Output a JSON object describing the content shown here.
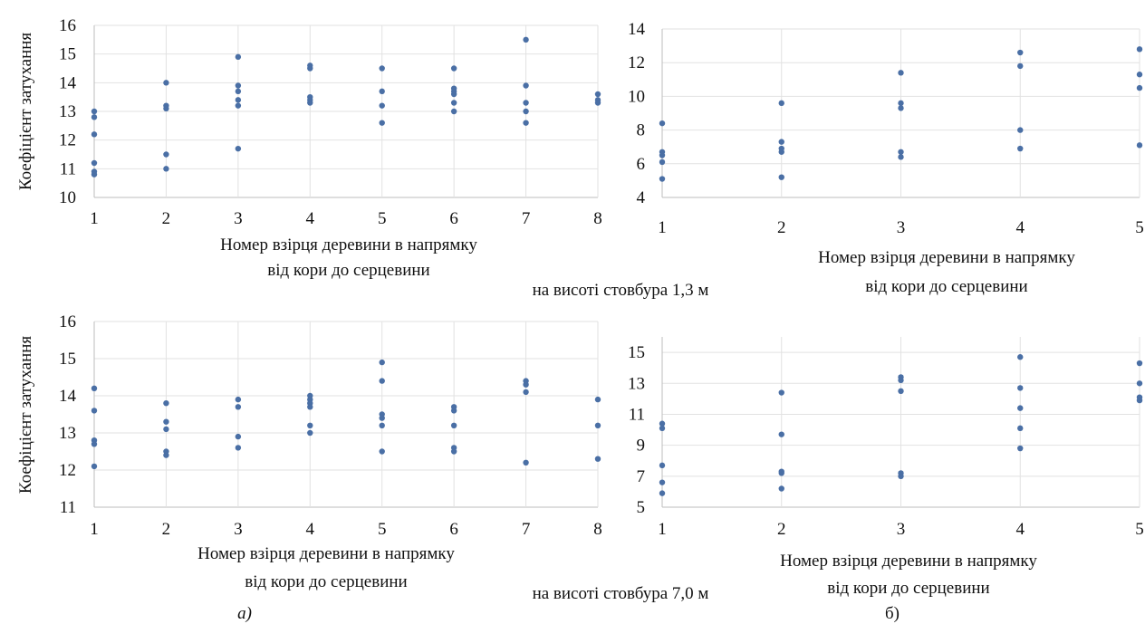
{
  "figure": {
    "caption_top": "на висоті стовбура 1,3 м",
    "caption_bottom": "на висоті стовбура 7,0 м",
    "label_a": "а)",
    "label_b": "б)",
    "accent_color": "#4a6fa5"
  },
  "chart_data": [
    {
      "id": "a-top",
      "type": "scatter",
      "ylabel": "Коефіцієнт затухання",
      "xlabel": [
        "Номер взірця деревини в напрямку",
        "від кори до серцевини"
      ],
      "xlim": [
        1,
        8
      ],
      "ylim": [
        10,
        16
      ],
      "xticks": [
        1,
        2,
        3,
        4,
        5,
        6,
        7,
        8
      ],
      "yticks": [
        10,
        11,
        12,
        13,
        14,
        15,
        16
      ],
      "grid": true,
      "points": [
        [
          1,
          13.0
        ],
        [
          1,
          12.8
        ],
        [
          1,
          12.2
        ],
        [
          1,
          11.2
        ],
        [
          1,
          10.9
        ],
        [
          1,
          10.8
        ],
        [
          2,
          14.0
        ],
        [
          2,
          13.2
        ],
        [
          2,
          13.1
        ],
        [
          2,
          11.5
        ],
        [
          2,
          11.0
        ],
        [
          3,
          14.9
        ],
        [
          3,
          13.9
        ],
        [
          3,
          13.7
        ],
        [
          3,
          13.4
        ],
        [
          3,
          13.2
        ],
        [
          3,
          11.7
        ],
        [
          4,
          14.6
        ],
        [
          4,
          14.5
        ],
        [
          4,
          13.5
        ],
        [
          4,
          13.4
        ],
        [
          4,
          13.3
        ],
        [
          5,
          14.5
        ],
        [
          5,
          13.7
        ],
        [
          5,
          13.2
        ],
        [
          5,
          12.6
        ],
        [
          6,
          14.5
        ],
        [
          6,
          13.8
        ],
        [
          6,
          13.7
        ],
        [
          6,
          13.6
        ],
        [
          6,
          13.3
        ],
        [
          6,
          13.0
        ],
        [
          7,
          15.5
        ],
        [
          7,
          13.9
        ],
        [
          7,
          13.3
        ],
        [
          7,
          13.0
        ],
        [
          7,
          12.6
        ],
        [
          8,
          13.6
        ],
        [
          8,
          13.4
        ],
        [
          8,
          13.3
        ]
      ]
    },
    {
      "id": "b-top",
      "type": "scatter",
      "ylabel": "",
      "xlabel": [
        "Номер взірця деревини в напрямку",
        "від кори до серцевини"
      ],
      "xlim": [
        1,
        5
      ],
      "ylim": [
        4,
        14
      ],
      "xticks": [
        1,
        2,
        3,
        4,
        5
      ],
      "yticks": [
        4,
        6,
        8,
        10,
        12,
        14
      ],
      "grid": true,
      "points": [
        [
          1,
          8.4
        ],
        [
          1,
          6.7
        ],
        [
          1,
          6.5
        ],
        [
          1,
          6.1
        ],
        [
          1,
          5.1
        ],
        [
          2,
          9.6
        ],
        [
          2,
          7.3
        ],
        [
          2,
          6.9
        ],
        [
          2,
          6.7
        ],
        [
          2,
          5.2
        ],
        [
          3,
          11.4
        ],
        [
          3,
          9.6
        ],
        [
          3,
          9.3
        ],
        [
          3,
          6.7
        ],
        [
          3,
          6.4
        ],
        [
          4,
          12.6
        ],
        [
          4,
          11.8
        ],
        [
          4,
          8.0
        ],
        [
          4,
          6.9
        ],
        [
          5,
          12.8
        ],
        [
          5,
          11.3
        ],
        [
          5,
          10.5
        ],
        [
          5,
          7.1
        ]
      ]
    },
    {
      "id": "a-bottom",
      "type": "scatter",
      "ylabel": "Коефіцієнт затухання",
      "xlabel": [
        "Номер взірця деревини в напрямку",
        "від кори до серцевини"
      ],
      "xlim": [
        1,
        8
      ],
      "ylim": [
        11,
        16
      ],
      "xticks": [
        1,
        2,
        3,
        4,
        5,
        6,
        7,
        8
      ],
      "yticks": [
        11,
        12,
        13,
        14,
        15,
        16
      ],
      "grid": true,
      "points": [
        [
          1,
          14.2
        ],
        [
          1,
          13.6
        ],
        [
          1,
          12.8
        ],
        [
          1,
          12.7
        ],
        [
          1,
          12.1
        ],
        [
          2,
          13.8
        ],
        [
          2,
          13.3
        ],
        [
          2,
          13.1
        ],
        [
          2,
          12.5
        ],
        [
          2,
          12.4
        ],
        [
          3,
          13.9
        ],
        [
          3,
          13.7
        ],
        [
          3,
          12.9
        ],
        [
          3,
          12.6
        ],
        [
          4,
          14.0
        ],
        [
          4,
          13.9
        ],
        [
          4,
          13.8
        ],
        [
          4,
          13.7
        ],
        [
          4,
          13.2
        ],
        [
          4,
          13.0
        ],
        [
          5,
          14.9
        ],
        [
          5,
          14.4
        ],
        [
          5,
          13.5
        ],
        [
          5,
          13.4
        ],
        [
          5,
          13.2
        ],
        [
          5,
          12.5
        ],
        [
          6,
          13.7
        ],
        [
          6,
          13.6
        ],
        [
          6,
          13.2
        ],
        [
          6,
          12.6
        ],
        [
          6,
          12.5
        ],
        [
          7,
          14.4
        ],
        [
          7,
          14.3
        ],
        [
          7,
          14.1
        ],
        [
          7,
          12.2
        ],
        [
          8,
          13.9
        ],
        [
          8,
          13.2
        ],
        [
          8,
          12.3
        ]
      ]
    },
    {
      "id": "b-bottom",
      "type": "scatter",
      "ylabel": "",
      "xlabel": [
        "Номер взірця деревини в напрямку",
        "від кори до серцевини"
      ],
      "xlim": [
        1,
        5
      ],
      "ylim": [
        5,
        16
      ],
      "xticks": [
        1,
        2,
        3,
        4,
        5
      ],
      "yticks": [
        5,
        7,
        9,
        11,
        13,
        15
      ],
      "grid": true,
      "points": [
        [
          1,
          10.4
        ],
        [
          1,
          10.1
        ],
        [
          1,
          7.7
        ],
        [
          1,
          6.6
        ],
        [
          1,
          5.9
        ],
        [
          2,
          12.4
        ],
        [
          2,
          9.7
        ],
        [
          2,
          7.3
        ],
        [
          2,
          7.2
        ],
        [
          2,
          6.2
        ],
        [
          3,
          13.4
        ],
        [
          3,
          13.2
        ],
        [
          3,
          12.5
        ],
        [
          3,
          7.2
        ],
        [
          3,
          7.0
        ],
        [
          4,
          14.7
        ],
        [
          4,
          12.7
        ],
        [
          4,
          11.4
        ],
        [
          4,
          10.1
        ],
        [
          4,
          8.8
        ],
        [
          5,
          14.3
        ],
        [
          5,
          13.0
        ],
        [
          5,
          12.1
        ],
        [
          5,
          11.9
        ]
      ]
    }
  ]
}
